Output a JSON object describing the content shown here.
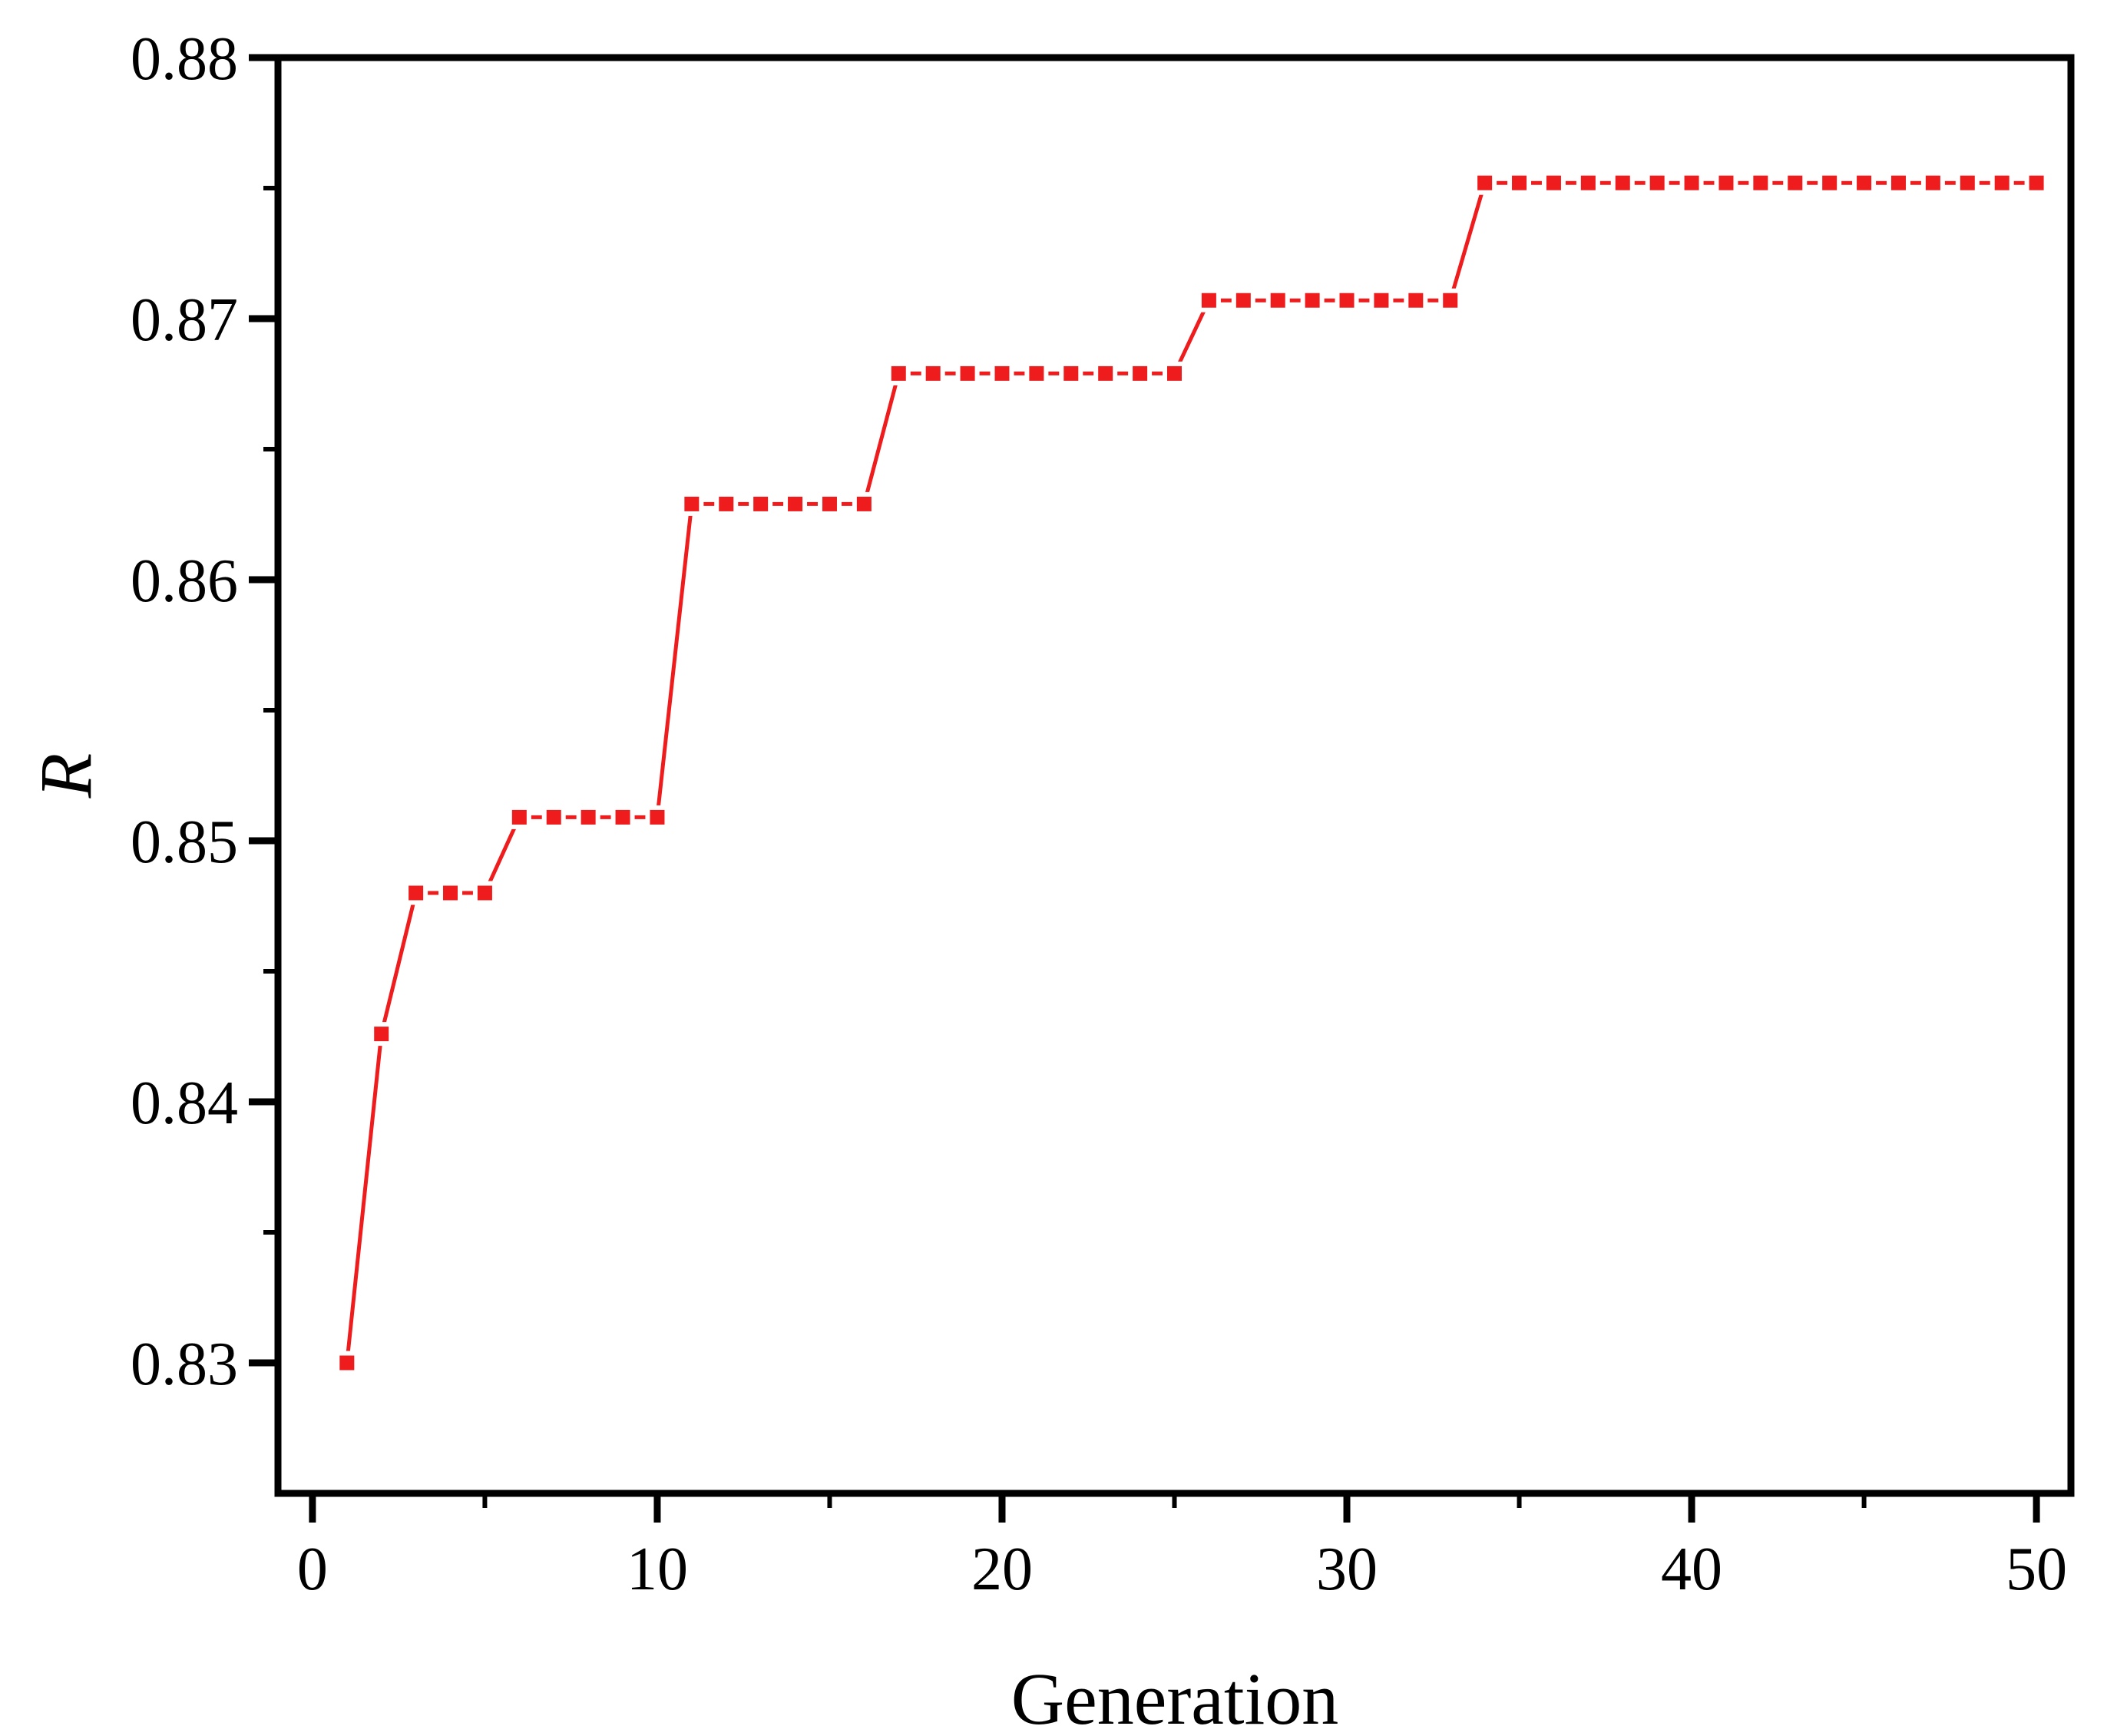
{
  "figure": {
    "background": "#ffffff",
    "frame_color": "#000000"
  },
  "chart_data": {
    "type": "line",
    "title": "",
    "xlabel": "Generation",
    "ylabel": "R",
    "legend": "none",
    "grid": false,
    "series_color": "#ee1c1c",
    "marker": "square",
    "marker_size": 19,
    "line_width": 5,
    "xlim": [
      -1,
      51
    ],
    "ylim": [
      0.825,
      0.88
    ],
    "xticks": [
      0,
      10,
      20,
      30,
      40,
      50
    ],
    "xtick_labels": [
      "0",
      "10",
      "20",
      "30",
      "40",
      "50"
    ],
    "minor_xticks": [
      5,
      15,
      25,
      35,
      45
    ],
    "yticks": [
      0.83,
      0.84,
      0.85,
      0.86,
      0.87,
      0.88
    ],
    "ytick_labels": [
      "0.83",
      "0.84",
      "0.85",
      "0.86",
      "0.87",
      "0.88"
    ],
    "minor_yticks": [
      0.835,
      0.845,
      0.855,
      0.865,
      0.875
    ],
    "x": [
      1,
      2,
      3,
      4,
      5,
      6,
      7,
      8,
      9,
      10,
      11,
      12,
      13,
      14,
      15,
      16,
      17,
      18,
      19,
      20,
      21,
      22,
      23,
      24,
      25,
      26,
      27,
      28,
      29,
      30,
      31,
      32,
      33,
      34,
      35,
      36,
      37,
      38,
      39,
      40,
      41,
      42,
      43,
      44,
      45,
      46,
      47,
      48,
      49,
      50
    ],
    "y": [
      0.83,
      0.8426,
      0.848,
      0.848,
      0.848,
      0.8509,
      0.8509,
      0.8509,
      0.8509,
      0.8509,
      0.8629,
      0.8629,
      0.8629,
      0.8629,
      0.8629,
      0.8629,
      0.8679,
      0.8679,
      0.8679,
      0.8679,
      0.8679,
      0.8679,
      0.8679,
      0.8679,
      0.8679,
      0.8707,
      0.8707,
      0.8707,
      0.8707,
      0.8707,
      0.8707,
      0.8707,
      0.8707,
      0.8752,
      0.8752,
      0.8752,
      0.8752,
      0.8752,
      0.8752,
      0.8752,
      0.8752,
      0.8752,
      0.8752,
      0.8752,
      0.8752,
      0.8752,
      0.8752,
      0.8752,
      0.8752,
      0.8752
    ]
  }
}
